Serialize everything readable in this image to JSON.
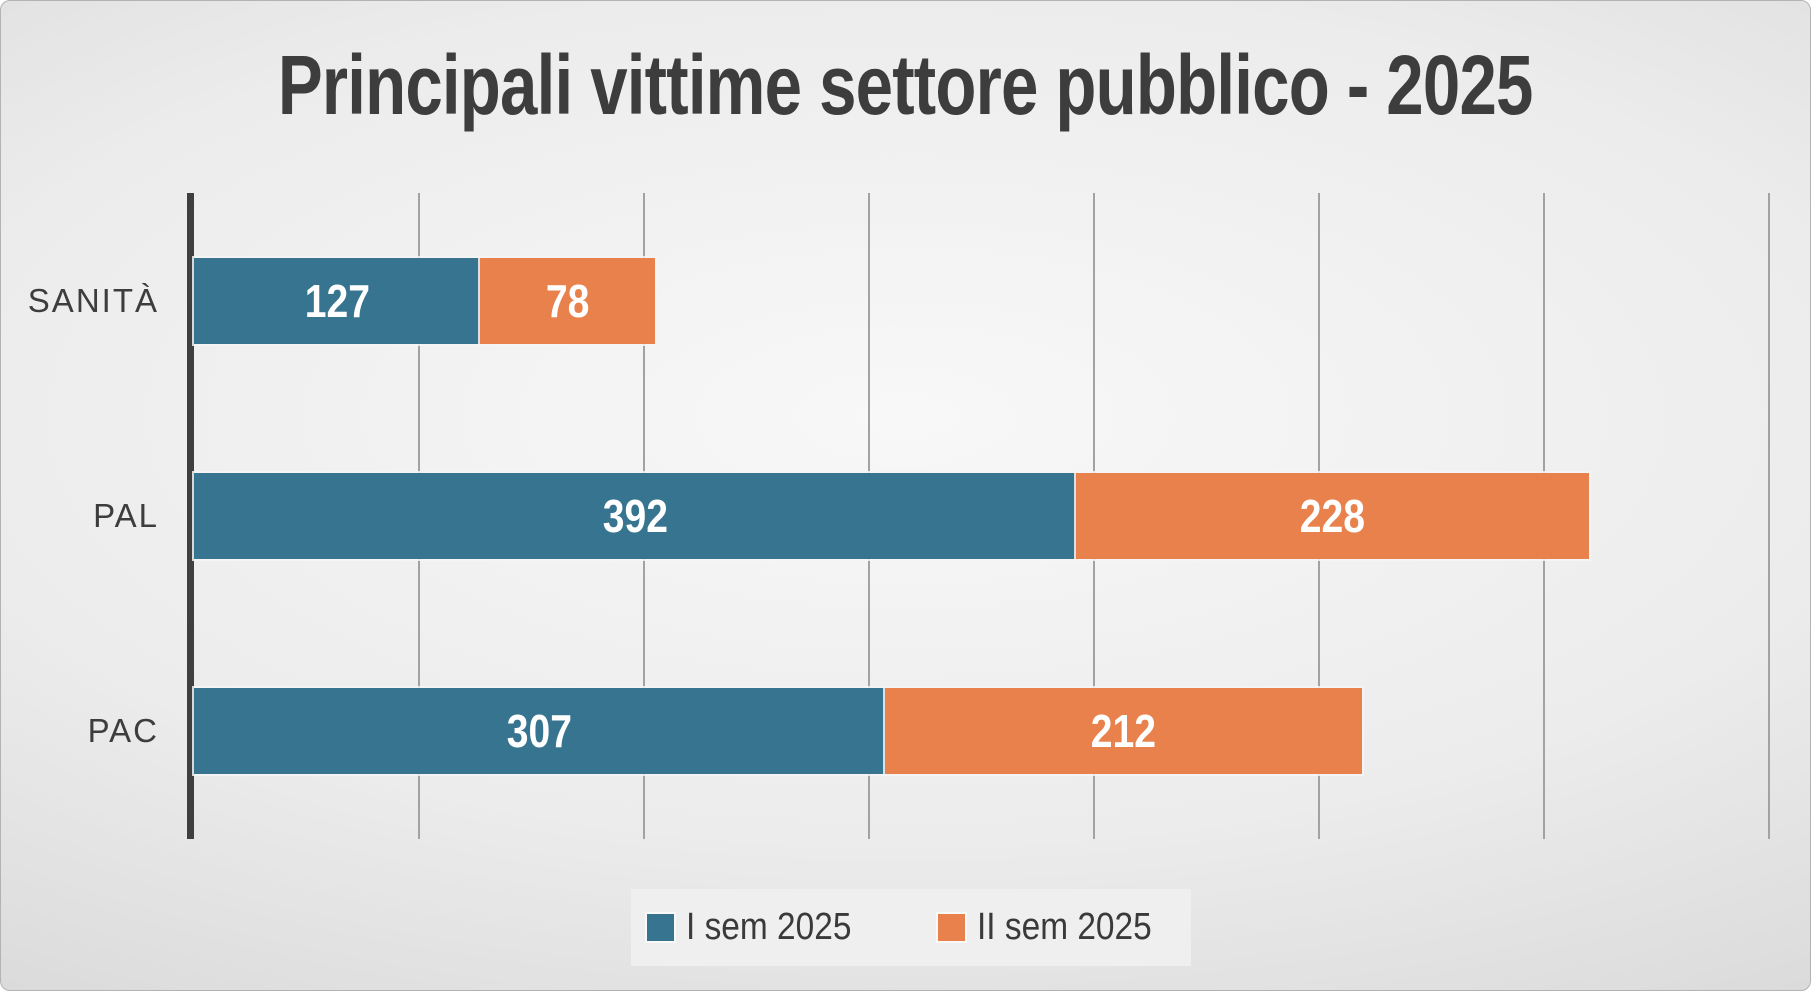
{
  "chart_data": {
    "type": "bar",
    "orientation": "horizontal",
    "stacked": true,
    "title": "Principali vittime settore pubblico - 2025",
    "categories": [
      "SANITÀ",
      "PAL",
      "PAC"
    ],
    "series": [
      {
        "name": "I sem 2025",
        "color": "#36748F",
        "values": [
          127,
          392,
          307
        ]
      },
      {
        "name": "II sem 2025",
        "color": "#E8814C",
        "values": [
          78,
          228,
          212
        ]
      }
    ],
    "totals": [
      205,
      620,
      519
    ],
    "xlim": [
      0,
      700
    ],
    "gridline_step": 100,
    "grid": true,
    "axis_labels_shown": false,
    "value_labels": "inside-center",
    "value_label_color": "#ffffff",
    "legend_position": "bottom"
  },
  "style": {
    "background_center": "#f8f8f8",
    "background_edge": "#c5c5c5",
    "title_color": "#3d3d3d",
    "category_label_color": "#3d3d3d",
    "gridline_color": "#a2a2a2",
    "axis_line_color": "#3f3f3f",
    "legend_background": "#efefef",
    "legend_text_color": "#3a3a3a"
  }
}
